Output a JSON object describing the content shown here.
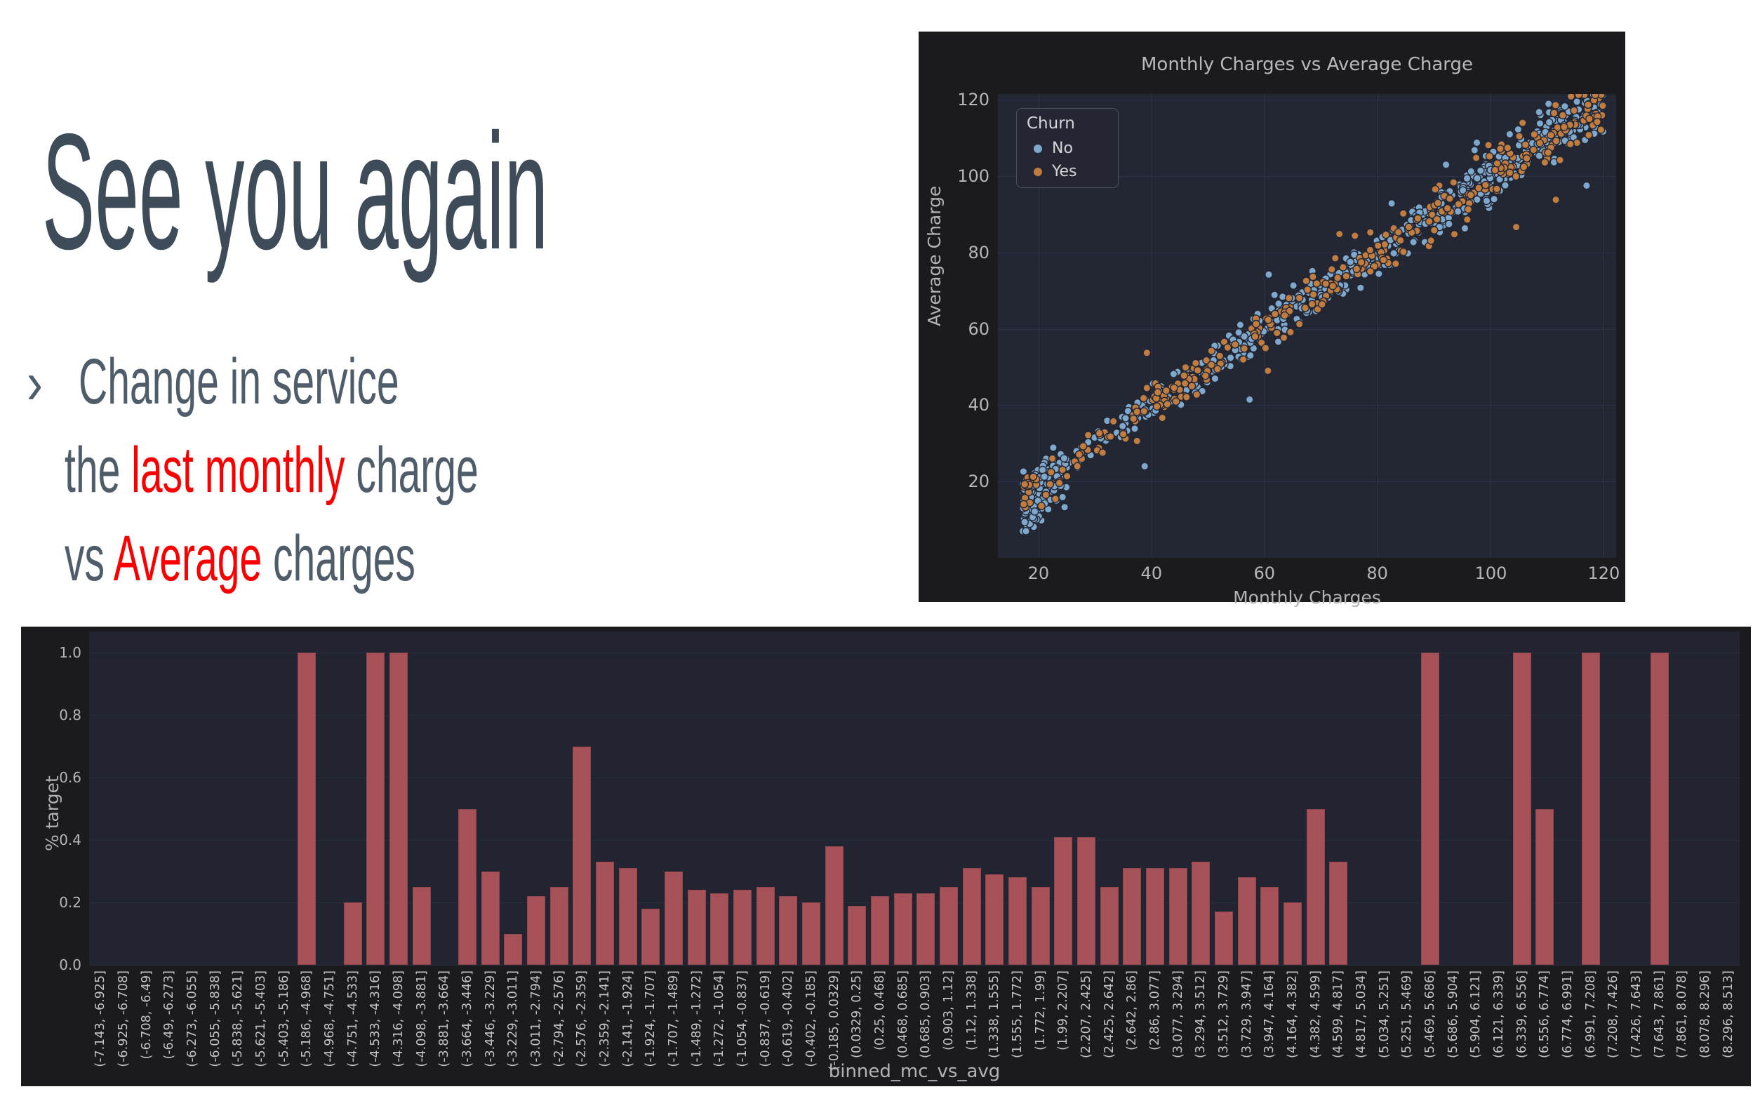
{
  "slide": {
    "title": "See you again",
    "title_color": "#3e4c59",
    "body_color": "#4e5d69",
    "accent_red": "#fb0000",
    "bullet": {
      "marker": "›",
      "line1": "Change in service",
      "line2_pre": "the ",
      "line2_red": "last monthly",
      "line2_post": " charge",
      "line3_pre": "vs ",
      "line3_red": "Average",
      "line3_post": " charges"
    }
  },
  "chart_data": "see charts",
  "charts": [
    {
      "type": "scatter",
      "title": "Monthly Charges vs Average Charge",
      "xlabel": "Monthly Charges",
      "ylabel": "Average Charge",
      "xlim": [
        12.8,
        122.3
      ],
      "ylim": [
        0,
        121.5
      ],
      "xticks": [
        20,
        40,
        60,
        80,
        100,
        120
      ],
      "yticks": [
        20,
        40,
        60,
        80,
        100,
        120
      ],
      "grid": true,
      "figure_bg": "#1b1b1d",
      "axes_bg": "#232633",
      "grid_color": "#30344a",
      "legend": {
        "title": "Churn",
        "position": "upper-left",
        "entries": [
          {
            "label": "No",
            "color": "#7fa8cd"
          },
          {
            "label": "Yes",
            "color": "#c07d42"
          }
        ]
      },
      "relationship": "Average charge is approximately equal to monthly charge: tight diagonal band from about (18,18) to (120,121); very dense cluster at lower left around x 18-26 with y down to ~8; churn=Yes (orange) points are mixed through the band, mostly at mid-to-high charges",
      "series": [
        {
          "name": "No",
          "color": "#7fa8cd",
          "n": 830,
          "cluster_frac": 0.33,
          "seed": 101
        },
        {
          "name": "Yes",
          "color": "#c07d42",
          "n": 350,
          "cluster_frac": 0.1,
          "seed": 202
        }
      ],
      "marker": {
        "radius": 5.2,
        "edge": "#232633"
      }
    },
    {
      "type": "bar",
      "title": "",
      "xlabel": "binned_mc_vs_avg",
      "ylabel": "% target",
      "ylim": [
        0,
        1.07
      ],
      "yticks": [
        0.0,
        0.2,
        0.4,
        0.6,
        0.8,
        1.0
      ],
      "ytick_labels": [
        "0.0",
        "0.2",
        "0.4",
        "0.6",
        "0.8",
        "1.0"
      ],
      "grid": true,
      "figure_bg": "#1b1b1d",
      "axes_bg": "#222531",
      "grid_color": "#2a2d3a",
      "bar_color": "#a65258",
      "categories": [
        "(-7.143, -6.925]",
        "(-6.925, -6.708]",
        "(-6.708, -6.49]",
        "(-6.49, -6.273]",
        "(-6.273, -6.055]",
        "(-6.055, -5.838]",
        "(-5.838, -5.621]",
        "(-5.621, -5.403]",
        "(-5.403, -5.186]",
        "(-5.186, -4.968]",
        "(-4.968, -4.751]",
        "(-4.751, -4.533]",
        "(-4.533, -4.316]",
        "(-4.316, -4.098]",
        "(-4.098, -3.881]",
        "(-3.881, -3.664]",
        "(-3.664, -3.446]",
        "(-3.446, -3.229]",
        "(-3.229, -3.011]",
        "(-3.011, -2.794]",
        "(-2.794, -2.576]",
        "(-2.576, -2.359]",
        "(-2.359, -2.141]",
        "(-2.141, -1.924]",
        "(-1.924, -1.707]",
        "(-1.707, -1.489]",
        "(-1.489, -1.272]",
        "(-1.272, -1.054]",
        "(-1.054, -0.837]",
        "(-0.837, -0.619]",
        "(-0.619, -0.402]",
        "(-0.402, -0.185]",
        "(-0.185, 0.0329]",
        "(0.0329, 0.25]",
        "(0.25, 0.468]",
        "(0.468, 0.685]",
        "(0.685, 0.903]",
        "(0.903, 1.12]",
        "(1.12, 1.338]",
        "(1.338, 1.555]",
        "(1.555, 1.772]",
        "(1.772, 1.99]",
        "(1.99, 2.207]",
        "(2.207, 2.425]",
        "(2.425, 2.642]",
        "(2.642, 2.86]",
        "(2.86, 3.077]",
        "(3.077, 3.294]",
        "(3.294, 3.512]",
        "(3.512, 3.729]",
        "(3.729, 3.947]",
        "(3.947, 4.164]",
        "(4.164, 4.382]",
        "(4.382, 4.599]",
        "(4.599, 4.817]",
        "(4.817, 5.034]",
        "(5.034, 5.251]",
        "(5.251, 5.469]",
        "(5.469, 5.686]",
        "(5.686, 5.904]",
        "(5.904, 6.121]",
        "(6.121, 6.339]",
        "(6.339, 6.556]",
        "(6.556, 6.774]",
        "(6.774, 6.991]",
        "(6.991, 7.208]",
        "(7.208, 7.426]",
        "(7.426, 7.643]",
        "(7.643, 7.861]",
        "(7.861, 8.078]",
        "(8.078, 8.296]",
        "(8.296, 8.513]"
      ],
      "values": [
        0,
        0,
        0,
        0,
        0,
        0,
        0,
        0,
        0,
        1.0,
        0,
        0.2,
        1.0,
        1.0,
        0.25,
        0,
        0.5,
        0.3,
        0.1,
        0.22,
        0.25,
        0.7,
        0.33,
        0.31,
        0.18,
        0.3,
        0.24,
        0.23,
        0.24,
        0.25,
        0.22,
        0.2,
        0.38,
        0.19,
        0.22,
        0.23,
        0.23,
        0.25,
        0.31,
        0.29,
        0.28,
        0.25,
        0.41,
        0.41,
        0.25,
        0.31,
        0.31,
        0.31,
        0.33,
        0.17,
        0.28,
        0.25,
        0.2,
        0.5,
        0.33,
        0,
        0,
        0,
        1.0,
        0,
        0,
        0,
        1.0,
        0.5,
        0,
        1.0,
        0,
        0,
        1.0,
        0,
        0,
        0
      ]
    }
  ]
}
